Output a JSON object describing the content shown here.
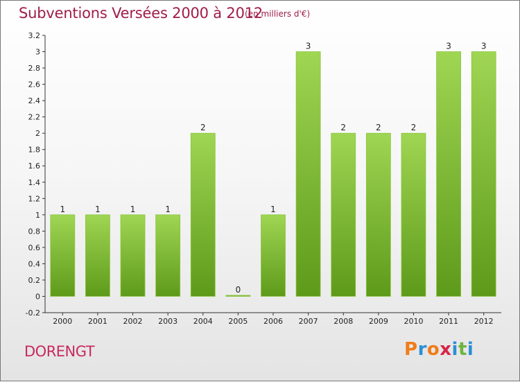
{
  "title": "Subventions Versées 2000 à 2012",
  "unit_note": "(en milliers d'€)",
  "commune": "DORENGT",
  "logo": {
    "text": "Proxiti",
    "letters": [
      "P",
      "r",
      "o",
      "x",
      "i",
      "t",
      "i"
    ],
    "colors": [
      "#f07d1a",
      "#2c8fd6",
      "#f07d1a",
      "#d6254a",
      "#2c8fd6",
      "#6db33f",
      "#2c8fd6"
    ]
  },
  "colors": {
    "title": "#a01c4a",
    "commune": "#c8295f",
    "bar_top": "#9fd653",
    "bar_bottom": "#5e9a1a"
  },
  "chart_data": {
    "type": "bar",
    "categories": [
      "2000",
      "2001",
      "2002",
      "2003",
      "2004",
      "2005",
      "2006",
      "2007",
      "2008",
      "2009",
      "2010",
      "2011",
      "2012"
    ],
    "values": [
      1,
      1,
      1,
      1,
      2,
      0,
      1,
      3,
      2,
      2,
      2,
      3,
      3
    ],
    "data_labels": [
      "1",
      "1",
      "1",
      "1",
      "2",
      "0",
      "1",
      "3",
      "2",
      "2",
      "2",
      "3",
      "3"
    ],
    "y_ticks": [
      "-0.2",
      "0",
      "0.2",
      "0.4",
      "0.6",
      "0.8",
      "1",
      "1.2",
      "1.4",
      "1.6",
      "1.8",
      "2",
      "2.2",
      "2.4",
      "2.6",
      "2.8",
      "3",
      "3.2"
    ],
    "ylim": [
      -0.2,
      3.2
    ],
    "grid": false
  }
}
